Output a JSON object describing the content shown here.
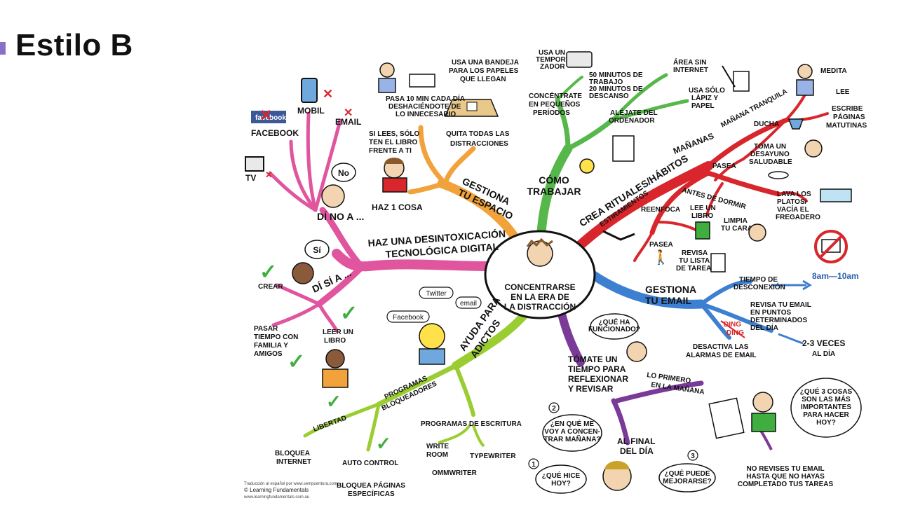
{
  "slide": {
    "title": "Estilo B",
    "accent": "#8a6fc9"
  },
  "center": {
    "lines": [
      "CONCENTRARSE",
      "EN LA ERA DE",
      "LA DISTRACCIÓN"
    ]
  },
  "branches": {
    "digital_detox": {
      "label": [
        "HAZ UNA DESINTOXICACIÓN",
        "TECNOLÓGICA DIGITAL"
      ],
      "color": "#e0559e"
    },
    "space": {
      "label": [
        "GESTIONA",
        "TU ESPACIO"
      ],
      "color": "#f2a23a"
    },
    "work": {
      "label": [
        "CÓMO",
        "TRABAJAR"
      ],
      "color": "#56b84a"
    },
    "habits": {
      "label": "CREA RITUALES/HÁBITOS",
      "color": "#d8262c"
    },
    "email": {
      "label": [
        "GESTIONA",
        "TU EMAIL"
      ],
      "color": "#3d7fd1"
    },
    "reflect": {
      "label": [
        "TÓMATE UN",
        "TIEMPO PARA",
        "REFLEXIONAR",
        "Y REVISAR"
      ],
      "color": "#7a3b98"
    },
    "addicts": {
      "label": [
        "AYUDA PARA",
        "ADICTOS"
      ],
      "color": "#9acd32"
    }
  },
  "no_side": {
    "label": "DÍ NO A ...",
    "bubble": "No",
    "items": [
      "MOBIL",
      "EMAIL",
      "FACEBOOK",
      "TV"
    ],
    "facebook_logo": "facebook"
  },
  "yes_side": {
    "label": "DÍ SÍ A ...",
    "bubble": "Sí",
    "items": [
      "CREAR",
      [
        "PASAR",
        "TIEMPO CON",
        "FAMILIA Y",
        "AMIGOS"
      ],
      [
        "LEER UN",
        "LIBRO"
      ]
    ]
  },
  "space_items": {
    "tray": [
      "USA UNA BANDEJA",
      "PARA LOS PAPELES",
      "QUE LLEGAN"
    ],
    "ten_min": [
      "PASA 10 MIN CADA DÍA",
      "DESHACIÉNDOTE DE",
      "LO INNECESARIO"
    ],
    "read": [
      "SI LEES, SÓLO",
      "TEN EL LIBRO",
      "FRENTE A TI"
    ],
    "one_thing": "HAZ 1 COSA",
    "remove": [
      "QUITA TODAS LAS",
      "DISTRACCIONES"
    ]
  },
  "work_items": {
    "timer": [
      "USA UN",
      "TEMPORI-",
      "ZADOR"
    ],
    "periods": [
      "CONCÉNTRATE",
      "EN PEQUEÑOS",
      "PERÍODOS"
    ],
    "minutes": [
      "50 MINUTOS DE",
      "TRABAJO",
      "20 MINUTOS DE",
      "DESCANSO"
    ],
    "away": [
      "ALÉJATE DEL",
      "ORDENADOR"
    ],
    "no_internet": [
      "ÁREA SIN",
      "INTERNET"
    ],
    "pen_paper": [
      "USA SÓLO",
      "LÁPIZ Y",
      "PAPEL"
    ]
  },
  "habit_items": {
    "mornings": "MAÑANAS",
    "quiet_morning": "MAÑANA TRANQUILA",
    "meditate": "MEDITA",
    "read": "LEE",
    "write": [
      "ESCRIBE",
      "PÁGINAS",
      "MATUTINAS"
    ],
    "shower": "DUCHA",
    "breakfast": [
      "TOMA UN",
      "DESAYUNO",
      "SALUDABLE"
    ],
    "walk": "PASEA",
    "before_sleep": "ANTES DE DORMIR",
    "dishes": [
      "LAVA LOS",
      "PLATOS/",
      "VACÍA EL",
      "FREGADERO"
    ],
    "stretch": "ESTIRAMIENTOS",
    "refocus": "REENFOCA",
    "read_book": [
      "LEE UN",
      "LIBRO"
    ],
    "wash_face": [
      "LIMPIA",
      "TU CARA"
    ],
    "walk2": "PASEA",
    "task_list": [
      "REVISA",
      "TU LISTA",
      "DE TAREAS"
    ],
    "time_range": "8am—10am"
  },
  "email_items": {
    "disconnect": [
      "TIEMPO DE",
      "DESCONEXIÓN"
    ],
    "check": [
      "REVISA TU EMAIL",
      "EN PUNTOS",
      "DETERMINADOS",
      "DEL DÍA"
    ],
    "times": "2-3 VECES",
    "per_day": "AL DÍA",
    "ding": [
      "DING",
      "DING"
    ],
    "alarms": [
      "DESACTIVA LAS",
      "ALARMAS DE EMAIL"
    ]
  },
  "reflect_items": {
    "what_worked": [
      "¿QUÉ HA",
      "FUNCIONADO?"
    ],
    "first_morning": [
      "LO PRIMERO",
      "EN LA MAÑANA"
    ],
    "three_things": [
      "¿QUÉ 3 COSAS",
      "SON LAS MÁS",
      "IMPORTANTES",
      "PARA HACER",
      "HOY?"
    ],
    "no_email": [
      "NO REVISES TU EMAIL",
      "HASTA QUE NO HAYAS",
      "COMPLETADO TUS TAREAS"
    ],
    "end_day": [
      "AL FINAL",
      "DEL DÍA"
    ],
    "q1": [
      "¿QUÉ HICE",
      "HOY?"
    ],
    "q2": [
      "¿EN QUÉ ME",
      "VOY A CONCEN-",
      "TRAR MAÑANA?"
    ],
    "q3": [
      "¿QUÉ PUEDE",
      "MEJORARSE?"
    ],
    "n1": "1",
    "n2": "2",
    "n3": "3"
  },
  "addict_items": {
    "twitter": "Twitter",
    "email": "email",
    "facebook": "Facebook",
    "blockers": [
      "PROGRAMAS",
      "BLOQUEADORES"
    ],
    "freedom": "LIBERTAD",
    "block_internet": [
      "BLOQUEA",
      "INTERNET"
    ],
    "self_control": "AUTO CONTROL",
    "block_pages": [
      "BLOQUEA PÁGINAS",
      "ESPECÍFICAS"
    ],
    "writing": "PROGRAMAS DE ESCRITURA",
    "writeroom": [
      "WRITE",
      "ROOM"
    ],
    "typewriter": "TYPEWRITER",
    "ommwriter": "OMMWRITER"
  },
  "credits": {
    "line1": "Traducción al español por www.sempuentura.com",
    "line2": "© Learning Fundamentals",
    "line3": "www.learningfundamentals.com.au"
  }
}
